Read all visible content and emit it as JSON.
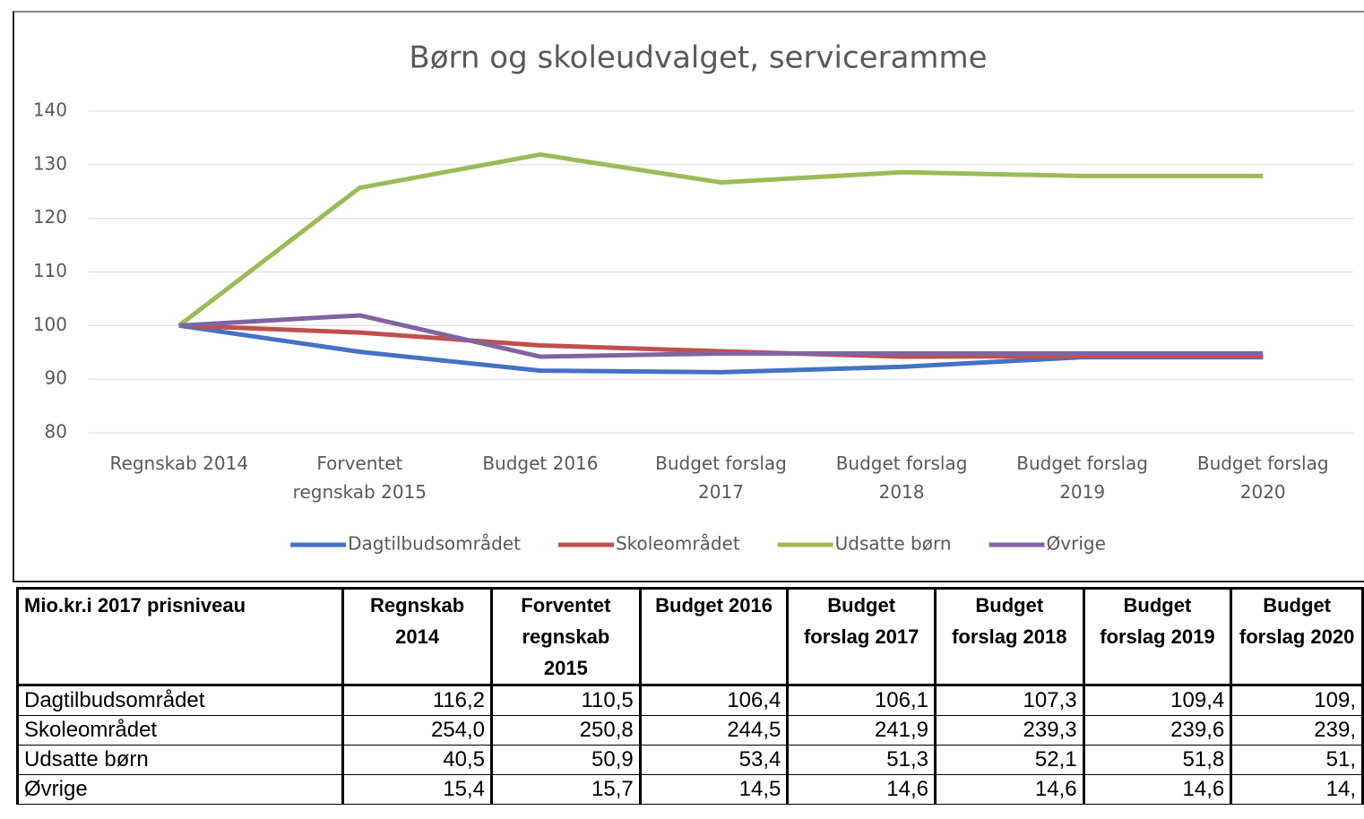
{
  "chart_data": {
    "type": "line",
    "title": "Børn og skoleudvalget, serviceramme",
    "categories": [
      "Regnskab 2014",
      "Forventet regnskab 2015",
      "Budget 2016",
      "Budget forslag 2017",
      "Budget forslag 2018",
      "Budget forslag 2019",
      "Budget forslag 2020"
    ],
    "series": [
      {
        "name": "Dagtilbudsområdet",
        "color": "#4472c4",
        "values": [
          100,
          95.1,
          91.6,
          91.3,
          92.3,
          94.1,
          94.1
        ]
      },
      {
        "name": "Skoleområdet",
        "color": "#c0504d",
        "values": [
          100,
          98.7,
          96.3,
          95.2,
          94.2,
          94.3,
          94.3
        ]
      },
      {
        "name": "Udsatte børn",
        "color": "#9bbb59",
        "values": [
          100,
          125.7,
          131.9,
          126.7,
          128.6,
          127.9,
          127.9
        ]
      },
      {
        "name": "Øvrige",
        "color": "#8064a2",
        "values": [
          100,
          101.9,
          94.2,
          94.8,
          94.8,
          94.8,
          94.8
        ]
      }
    ],
    "ylim": [
      80,
      140
    ],
    "yticks": [
      80,
      90,
      100,
      110,
      120,
      130,
      140
    ],
    "grid": true,
    "legend": "bottom"
  },
  "table": {
    "header": [
      "Mio.kr.i 2017 prisniveau",
      "Regnskab 2014",
      "Forventet regnskab 2015",
      "Budget 2016",
      "Budget forslag 2017",
      "Budget forslag 2018",
      "Budget forslag 2019",
      "Budget forslag 2020"
    ],
    "rows": [
      [
        "Dagtilbudsområdet",
        "116,2",
        "110,5",
        "106,4",
        "106,1",
        "107,3",
        "109,4",
        "109,"
      ],
      [
        "Skoleområdet",
        "254,0",
        "250,8",
        "244,5",
        "241,9",
        "239,3",
        "239,6",
        "239,"
      ],
      [
        "Udsatte børn",
        "40,5",
        "50,9",
        "53,4",
        "51,3",
        "52,1",
        "51,8",
        "51,"
      ],
      [
        "Øvrige",
        "15,4",
        "15,7",
        "14,5",
        "14,6",
        "14,6",
        "14,6",
        "14,"
      ]
    ]
  }
}
